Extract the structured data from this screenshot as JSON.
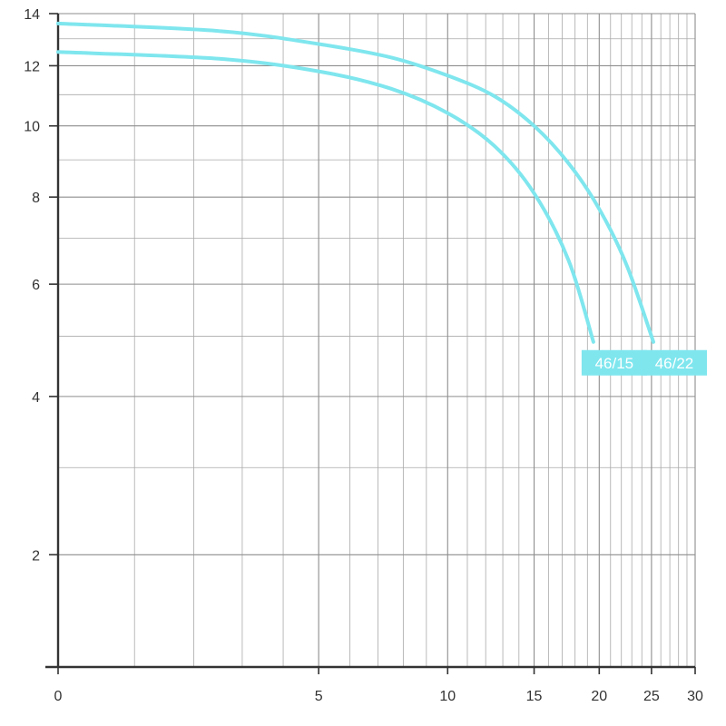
{
  "chart_data": {
    "type": "line",
    "title": "",
    "xlabel": "",
    "ylabel": "",
    "xlim": [
      0,
      30
    ],
    "ylim": [
      1,
      14
    ],
    "x_scale": "log(x+3)",
    "y_scale": "log(y+2)",
    "grid": true,
    "x_ticks": [
      0,
      5,
      10,
      15,
      20,
      25,
      30
    ],
    "x_tick_labels": [
      "0",
      "5",
      "10",
      "15",
      "20",
      "25",
      "30"
    ],
    "y_ticks": [
      2,
      4,
      6,
      8,
      10,
      12,
      14
    ],
    "y_tick_labels": [
      "2",
      "4",
      "6",
      "8",
      "10",
      "12",
      "14"
    ],
    "accent_color": "#7fe6ee",
    "series": [
      {
        "name": "46/15",
        "x": [
          0,
          2.5,
          5,
          7.5,
          10,
          12.5,
          15,
          17.5,
          19.5
        ],
        "y": [
          12.5,
          12.25,
          11.8,
          11.2,
          10.4,
          9.4,
          8.1,
          6.5,
          4.9
        ]
      },
      {
        "name": "46/22",
        "x": [
          0,
          2.5,
          5,
          7.5,
          10,
          12.5,
          15,
          17.5,
          20,
          22.5,
          25.2
        ],
        "y": [
          13.6,
          13.3,
          12.8,
          12.3,
          11.65,
          10.95,
          10.0,
          8.9,
          7.7,
          6.4,
          4.9
        ]
      }
    ]
  }
}
